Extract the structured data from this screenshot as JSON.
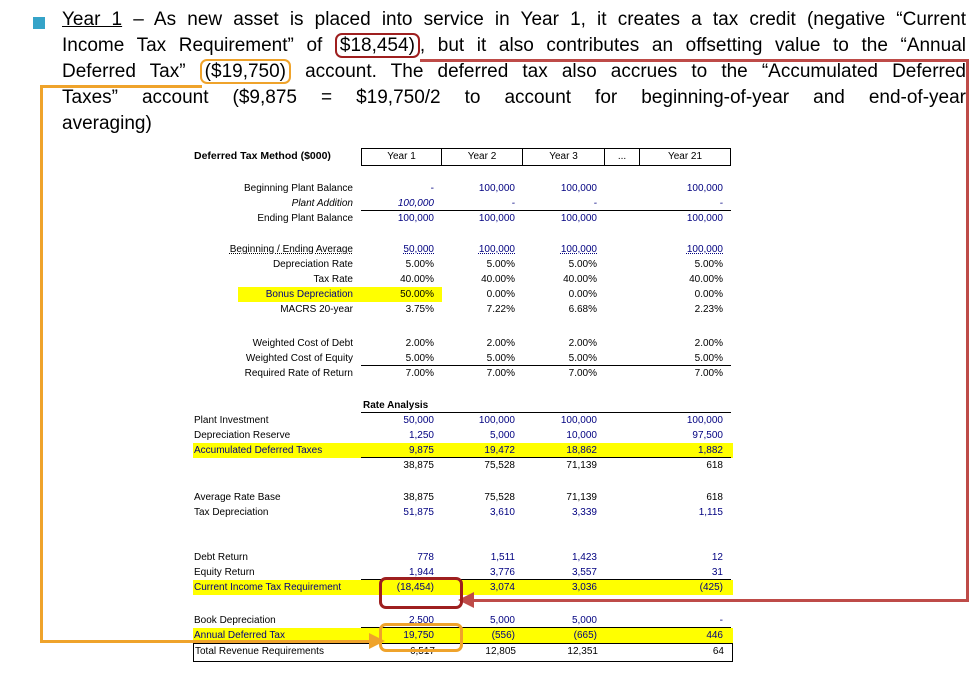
{
  "colors": {
    "bullet_accent": "#35A3C8",
    "red_annotation_box": "#9E1F1F",
    "red_annotation_line": "#BE4B48",
    "orange_annotation": "#EFA32B",
    "row_highlight": "#FFFF00",
    "navy_value_text": "#000080"
  },
  "paragraph": {
    "line1_term": "Year 1",
    "line1_rest": " – As new asset is placed into service in Year 1, it creates a tax credit (negative “Current",
    "line2_pre": "Income Tax Requirement” of ",
    "line2_boxed": "$18,454)",
    "line2_post": ", but it also contributes an offsetting value to the “Annual",
    "line3_pre": "Deferred Tax” ",
    "line3_boxed": "($19,750)",
    "line3_post": " account. The deferred tax also accrues to the “Accumulated Deferred",
    "line4": "Taxes” account ($9,875 = $19,750/2 to account for beginning-of-year and end-of-year",
    "line5": "averaging)"
  },
  "table": {
    "title": "Deferred Tax Method ($000)",
    "columns": [
      "Year 1",
      "Year 2",
      "Year 3",
      "...",
      "Year 21"
    ],
    "rows": [
      {
        "spacer": 15
      },
      {
        "l": "Beginning Plant Balance",
        "c": [
          "-",
          "100,000",
          "100,000",
          "",
          "100,000"
        ],
        "f": "navy"
      },
      {
        "l": "Plant Addition",
        "c": [
          "100,000",
          "-",
          "-",
          "",
          "-"
        ],
        "f": "navy italic ulc"
      },
      {
        "l": "Ending Plant Balance",
        "c": [
          "100,000",
          "100,000",
          "100,000",
          "",
          "100,000"
        ],
        "f": "navy"
      },
      {
        "spacer": 16
      },
      {
        "l": "Beginning / Ending Average",
        "c": [
          "50,000",
          "100,000",
          "100,000",
          "",
          "100,000"
        ],
        "f": "navy ult"
      },
      {
        "l": "Depreciation Rate",
        "c": [
          "5.00%",
          "5.00%",
          "5.00%",
          "",
          "5.00%"
        ],
        "f": ""
      },
      {
        "l": "Tax Rate",
        "c": [
          "40.00%",
          "40.00%",
          "40.00%",
          "",
          "40.00%"
        ],
        "f": ""
      },
      {
        "l": "Bonus Depreciation",
        "c": [
          "50.00%",
          "0.00%",
          "0.00%",
          "",
          "0.00%"
        ],
        "f": "hlf lnavy"
      },
      {
        "l": "MACRS 20-year",
        "c": [
          "3.75%",
          "7.22%",
          "6.68%",
          "",
          "2.23%"
        ],
        "f": ""
      },
      {
        "spacer": 19
      },
      {
        "l": "Weighted Cost of Debt",
        "c": [
          "2.00%",
          "2.00%",
          "2.00%",
          "",
          "2.00%"
        ],
        "f": ""
      },
      {
        "l": "Weighted Cost of Equity",
        "c": [
          "5.00%",
          "5.00%",
          "5.00%",
          "",
          "5.00%"
        ],
        "f": "ulc"
      },
      {
        "l": "Required Rate of Return",
        "c": [
          "7.00%",
          "7.00%",
          "7.00%",
          "",
          "7.00%"
        ],
        "f": ""
      },
      {
        "spacer": 17
      },
      {
        "section": true,
        "l": "Rate Analysis"
      },
      {
        "l": "Plant Investment",
        "c": [
          "50,000",
          "100,000",
          "100,000",
          "",
          "100,000"
        ],
        "f": "left navy"
      },
      {
        "l": "Depreciation Reserve",
        "c": [
          "1,250",
          "5,000",
          "10,000",
          "",
          "97,500"
        ],
        "f": "left navy"
      },
      {
        "l": "Accumulated Deferred Taxes",
        "c": [
          "9,875",
          "19,472",
          "18,862",
          "",
          "1,882"
        ],
        "f": "left hl lnavy navy ulc"
      },
      {
        "l": "",
        "c": [
          "38,875",
          "75,528",
          "71,139",
          "",
          "618"
        ],
        "f": "left"
      },
      {
        "spacer": 17
      },
      {
        "l": "Average Rate Base",
        "c": [
          "38,875",
          "75,528",
          "71,139",
          "",
          "618"
        ],
        "f": "left"
      },
      {
        "l": "Tax Depreciation",
        "c": [
          "51,875",
          "3,610",
          "3,339",
          "",
          "1,115"
        ],
        "f": "left navy"
      },
      {
        "spacer": 30
      },
      {
        "l": "Debt Return",
        "c": [
          "778",
          "1,511",
          "1,423",
          "",
          "12"
        ],
        "f": "left navy"
      },
      {
        "l": "Equity Return",
        "c": [
          "1,944",
          "3,776",
          "3,557",
          "",
          "31"
        ],
        "f": "left navy ulc"
      },
      {
        "l": "Current Income Tax Requirement",
        "c": [
          "(18,454)",
          "3,074",
          "3,036",
          "",
          "(425)"
        ],
        "f": "left hl lnavy navy"
      },
      {
        "spacer": 18
      },
      {
        "l": "Book Depreciation",
        "c": [
          "2,500",
          "5,000",
          "5,000",
          "",
          "-"
        ],
        "f": "left navy ulc"
      },
      {
        "l": "Annual Deferred Tax",
        "c": [
          "19,750",
          "(556)",
          "(665)",
          "",
          "446"
        ],
        "f": "left hl lnavy navy"
      },
      {
        "total": true,
        "l": "Total Revenue Requirements",
        "c": [
          "6,517",
          "12,805",
          "12,351",
          "",
          "64"
        ],
        "f": "left"
      }
    ]
  }
}
